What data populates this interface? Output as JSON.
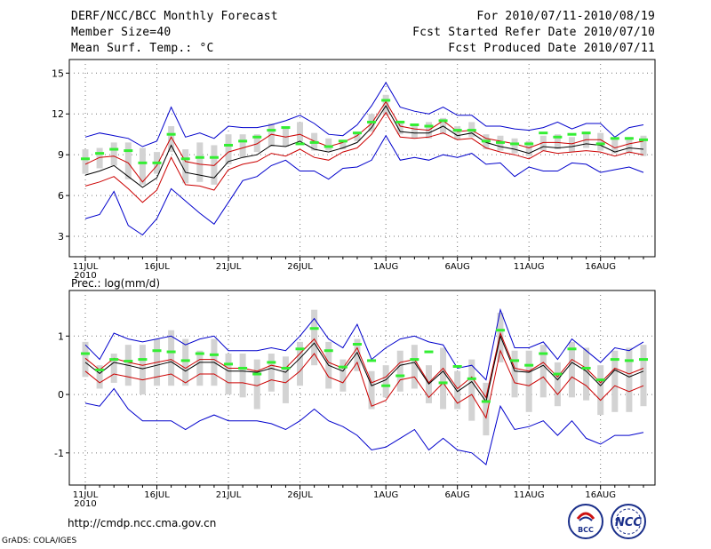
{
  "header": {
    "title": "DERF/NCC/BCC Monthly Forecast",
    "member_size": "Member Size=40",
    "variable_temp": "Mean Surf. Temp.: °C",
    "forecast_period": "For 2010/07/11-2010/08/19",
    "started_date": "Fcst Started Refer Date 2010/07/10",
    "produced_date": "Fcst Produced Date 2010/07/11"
  },
  "footer": {
    "url": "http://cmdp.ncc.cma.gov.cn",
    "credit": "GrADS: COLA/IGES",
    "logo_bcc_text": "BCC",
    "logo_ncc_text": "NCC"
  },
  "colors": {
    "max_line": "#0000cc",
    "min_line": "#0000cc",
    "mean_line": "#000000",
    "red_line": "#cc0000",
    "box": "#d3d3d3",
    "ensemble_mean_bar": "#33ee33"
  },
  "chart_data": [
    {
      "type": "line",
      "name": "temperature",
      "title": "Mean Surf. Temp.: °C",
      "xlabel": "",
      "ylabel": "°C",
      "ylim": [
        1.5,
        16.0
      ],
      "yticks": [
        3,
        6,
        9,
        12,
        15
      ],
      "ytick_labels": [
        "3",
        "6",
        "9",
        "12",
        "15"
      ],
      "grid": true,
      "day_start": 0,
      "day_end": 39,
      "xtick_days": [
        0,
        5,
        10,
        15,
        21,
        26,
        31,
        36
      ],
      "xtick_labels": [
        "11JUL",
        "16JUL",
        "21JUL",
        "26JUL",
        "1AUG",
        "6AUG",
        "11AUG",
        "16AUG"
      ],
      "year_label": "2010",
      "series": [
        {
          "name": "max",
          "values": [
            10.3,
            10.6,
            10.4,
            10.2,
            9.6,
            10.0,
            12.5,
            10.3,
            10.6,
            10.2,
            11.1,
            11.0,
            11.0,
            11.2,
            11.5,
            11.9,
            11.3,
            10.5,
            10.4,
            11.2,
            12.6,
            14.3,
            12.5,
            12.2,
            12.0,
            12.5,
            11.9,
            11.9,
            11.1,
            11.1,
            10.9,
            10.8,
            11.0,
            11.4,
            10.9,
            11.3,
            11.3,
            10.3,
            11.0,
            11.2
          ]
        },
        {
          "name": "upper_red",
          "values": [
            8.3,
            8.8,
            8.9,
            8.4,
            7.0,
            8.2,
            10.3,
            8.5,
            8.3,
            8.2,
            9.2,
            9.5,
            9.8,
            10.5,
            10.3,
            10.5,
            10.0,
            9.6,
            9.9,
            10.4,
            11.3,
            12.9,
            11.1,
            10.9,
            10.8,
            11.5,
            10.7,
            10.8,
            10.2,
            10.0,
            9.8,
            9.5,
            9.9,
            9.9,
            9.8,
            10.1,
            10.1,
            9.5,
            9.8,
            10.0
          ]
        },
        {
          "name": "mean",
          "values": [
            7.5,
            7.8,
            8.2,
            7.4,
            6.6,
            7.3,
            9.7,
            7.7,
            7.5,
            7.3,
            8.5,
            8.8,
            9.0,
            9.7,
            9.6,
            10.0,
            9.4,
            9.2,
            9.5,
            9.9,
            11.0,
            12.6,
            10.7,
            10.6,
            10.6,
            11.1,
            10.4,
            10.6,
            9.9,
            9.6,
            9.4,
            9.1,
            9.6,
            9.5,
            9.6,
            9.8,
            9.7,
            9.2,
            9.5,
            9.4
          ]
        },
        {
          "name": "lower_red",
          "values": [
            6.7,
            7.0,
            7.4,
            6.5,
            5.5,
            6.4,
            8.8,
            6.8,
            6.7,
            6.4,
            7.9,
            8.3,
            8.5,
            9.1,
            8.9,
            9.4,
            8.8,
            8.6,
            9.2,
            9.5,
            10.5,
            12.1,
            10.3,
            10.2,
            10.3,
            10.6,
            10.1,
            10.2,
            9.5,
            9.2,
            9.0,
            8.7,
            9.3,
            9.1,
            9.2,
            9.3,
            9.2,
            8.9,
            9.2,
            9.0
          ]
        },
        {
          "name": "min",
          "values": [
            4.3,
            4.6,
            6.3,
            3.8,
            3.1,
            4.3,
            6.5,
            5.6,
            4.7,
            3.9,
            5.5,
            7.1,
            7.4,
            8.2,
            8.6,
            7.8,
            7.8,
            7.2,
            8.0,
            8.1,
            8.6,
            10.4,
            8.6,
            8.8,
            8.6,
            9.0,
            8.8,
            9.1,
            8.3,
            8.4,
            7.4,
            8.1,
            7.8,
            7.8,
            8.4,
            8.3,
            7.7,
            7.9,
            8.1,
            7.7
          ]
        },
        {
          "name": "ensemble_mean_bar",
          "values": [
            8.7,
            9.1,
            9.4,
            9.3,
            8.4,
            8.4,
            10.5,
            8.7,
            8.8,
            8.8,
            9.7,
            10.0,
            10.3,
            10.8,
            11.0,
            9.8,
            9.9,
            9.6,
            10.0,
            10.6,
            11.4,
            13.0,
            11.4,
            11.2,
            11.1,
            11.5,
            10.8,
            10.8,
            10.0,
            9.9,
            9.8,
            9.8,
            10.6,
            10.3,
            10.5,
            10.6,
            9.8,
            10.2,
            10.2,
            10.1
          ]
        },
        {
          "name": "box_top",
          "values": [
            9.4,
            9.5,
            9.9,
            9.9,
            9.5,
            9.2,
            11.1,
            9.4,
            9.9,
            9.7,
            10.5,
            10.5,
            10.5,
            11.3,
            11.0,
            11.4,
            10.6,
            10.2,
            10.1,
            10.7,
            12.0,
            13.4,
            11.5,
            11.2,
            11.4,
            11.7,
            11.1,
            11.4,
            10.5,
            10.4,
            10.2,
            10.0,
            10.4,
            10.5,
            10.3,
            10.7,
            10.6,
            10.3,
            10.3,
            10.4
          ]
        },
        {
          "name": "box_bottom",
          "values": [
            7.6,
            8.0,
            8.2,
            7.2,
            6.8,
            7.6,
            9.2,
            6.9,
            7.0,
            6.8,
            8.3,
            8.8,
            9.2,
            9.6,
            9.6,
            10.0,
            9.3,
            9.3,
            9.4,
            10.0,
            10.7,
            11.9,
            10.5,
            10.2,
            10.2,
            10.5,
            10.1,
            10.3,
            9.4,
            9.3,
            9.1,
            8.9,
            9.3,
            9.4,
            9.2,
            9.5,
            9.3,
            9.1,
            9.1,
            8.9
          ]
        }
      ]
    },
    {
      "type": "line",
      "name": "precipitation",
      "title": "Prec.: log(mm/d)",
      "xlabel": "",
      "ylabel": "log(mm/d)",
      "ylim": [
        -1.55,
        1.78
      ],
      "yticks": [
        -1,
        0,
        1
      ],
      "ytick_labels": [
        "-1",
        "0",
        "1"
      ],
      "grid": true,
      "day_start": 0,
      "day_end": 39,
      "xtick_days": [
        0,
        5,
        10,
        15,
        21,
        26,
        31,
        36
      ],
      "xtick_labels": [
        "11JUL",
        "16JUL",
        "21JUL",
        "26JUL",
        "1AUG",
        "6AUG",
        "11AUG",
        "16AUG"
      ],
      "year_label": "2010",
      "series": [
        {
          "name": "max",
          "values": [
            0.85,
            0.6,
            1.05,
            0.95,
            0.9,
            0.95,
            1.0,
            0.85,
            0.95,
            1.0,
            0.75,
            0.75,
            0.75,
            0.8,
            0.75,
            1.0,
            1.3,
            0.95,
            0.8,
            1.2,
            0.6,
            0.8,
            0.95,
            1.0,
            0.9,
            0.85,
            0.45,
            0.5,
            0.25,
            1.45,
            0.8,
            0.8,
            0.9,
            0.6,
            0.95,
            0.75,
            0.55,
            0.8,
            0.75,
            0.9
          ]
        },
        {
          "name": "upper_red",
          "values": [
            0.62,
            0.42,
            0.62,
            0.55,
            0.5,
            0.55,
            0.6,
            0.45,
            0.6,
            0.6,
            0.45,
            0.45,
            0.4,
            0.5,
            0.45,
            0.7,
            0.95,
            0.55,
            0.45,
            0.8,
            0.2,
            0.3,
            0.55,
            0.6,
            0.2,
            0.45,
            0.1,
            0.3,
            -0.05,
            1.05,
            0.45,
            0.4,
            0.55,
            0.3,
            0.6,
            0.45,
            0.2,
            0.45,
            0.35,
            0.45
          ]
        },
        {
          "name": "mean",
          "values": [
            0.55,
            0.36,
            0.55,
            0.5,
            0.44,
            0.5,
            0.56,
            0.4,
            0.55,
            0.55,
            0.4,
            0.4,
            0.38,
            0.45,
            0.38,
            0.62,
            0.88,
            0.5,
            0.4,
            0.72,
            0.15,
            0.25,
            0.5,
            0.55,
            0.18,
            0.4,
            0.05,
            0.22,
            -0.12,
            1.0,
            0.4,
            0.38,
            0.5,
            0.25,
            0.55,
            0.4,
            0.15,
            0.42,
            0.3,
            0.4
          ]
        },
        {
          "name": "lower_red",
          "values": [
            0.4,
            0.2,
            0.35,
            0.3,
            0.25,
            0.3,
            0.35,
            0.2,
            0.35,
            0.35,
            0.2,
            0.2,
            0.15,
            0.25,
            0.2,
            0.4,
            0.7,
            0.3,
            0.2,
            0.55,
            -0.2,
            -0.1,
            0.25,
            0.3,
            -0.05,
            0.2,
            -0.15,
            0.0,
            -0.4,
            0.75,
            0.2,
            0.15,
            0.3,
            0.0,
            0.3,
            0.15,
            -0.1,
            0.15,
            0.05,
            0.15
          ]
        },
        {
          "name": "min",
          "values": [
            -0.15,
            -0.2,
            0.1,
            -0.25,
            -0.45,
            -0.45,
            -0.45,
            -0.6,
            -0.45,
            -0.35,
            -0.45,
            -0.45,
            -0.45,
            -0.5,
            -0.6,
            -0.45,
            -0.25,
            -0.45,
            -0.55,
            -0.7,
            -0.95,
            -0.9,
            -0.75,
            -0.6,
            -0.95,
            -0.75,
            -0.95,
            -1.0,
            -1.2,
            -0.2,
            -0.6,
            -0.55,
            -0.45,
            -0.7,
            -0.45,
            -0.75,
            -0.85,
            -0.7,
            -0.7,
            -0.65
          ]
        },
        {
          "name": "ensemble_mean_bar",
          "values": [
            0.7,
            0.42,
            0.6,
            0.57,
            0.6,
            0.75,
            0.73,
            0.58,
            0.7,
            0.68,
            0.52,
            0.45,
            0.35,
            0.55,
            0.45,
            0.78,
            1.13,
            0.75,
            0.47,
            0.86,
            0.58,
            0.15,
            0.32,
            0.6,
            0.73,
            0.2,
            0.48,
            0.27,
            -0.12,
            1.1,
            0.58,
            0.5,
            0.7,
            0.35,
            0.78,
            0.45,
            0.25,
            0.6,
            0.58,
            0.6
          ]
        },
        {
          "name": "box_top",
          "values": [
            0.9,
            0.5,
            0.7,
            0.85,
            0.85,
            0.95,
            1.1,
            0.95,
            0.75,
            0.95,
            0.7,
            0.7,
            0.6,
            0.7,
            0.65,
            0.9,
            1.45,
            0.9,
            0.6,
            0.95,
            0.4,
            0.5,
            0.75,
            0.85,
            0.5,
            0.8,
            0.4,
            0.6,
            0.2,
            1.4,
            0.75,
            0.75,
            0.85,
            0.55,
            0.9,
            0.8,
            0.5,
            0.75,
            0.8,
            0.85
          ]
        },
        {
          "name": "box_bottom",
          "values": [
            0.3,
            0.1,
            0.2,
            0.15,
            0.0,
            0.15,
            0.15,
            0.15,
            0.15,
            0.15,
            0.0,
            -0.05,
            -0.25,
            0.05,
            -0.15,
            0.15,
            0.5,
            0.1,
            0.05,
            0.4,
            -0.25,
            -0.05,
            0.05,
            0.1,
            -0.15,
            -0.25,
            -0.25,
            -0.45,
            -0.7,
            0.55,
            -0.05,
            -0.3,
            -0.05,
            -0.2,
            -0.05,
            -0.1,
            -0.35,
            -0.3,
            -0.3,
            -0.2
          ]
        }
      ]
    }
  ]
}
